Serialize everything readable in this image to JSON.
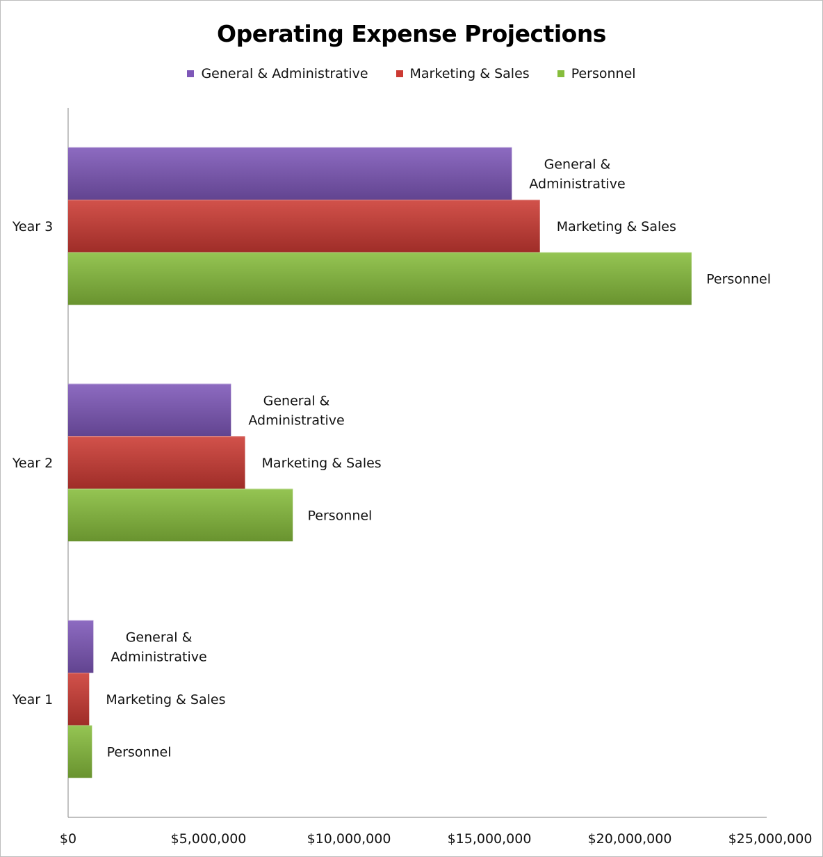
{
  "chart_data": {
    "type": "bar",
    "orientation": "horizontal",
    "title": "Operating Expense Projections",
    "categories": [
      "Year 1",
      "Year 2",
      "Year 3"
    ],
    "series": [
      {
        "name": "General & Administrative",
        "values": [
          900000,
          5800000,
          15800000
        ],
        "color": "#7e57b8",
        "label_lines": [
          "General &",
          "Administrative"
        ]
      },
      {
        "name": "Marketing & Sales",
        "values": [
          750000,
          6300000,
          16800000
        ],
        "color": "#cc3a33",
        "label_lines": [
          "Marketing & Sales"
        ]
      },
      {
        "name": "Personnel",
        "values": [
          850000,
          8000000,
          22200000
        ],
        "color": "#86bd3c",
        "label_lines": [
          "Personnel"
        ]
      }
    ],
    "xlim": [
      0,
      25000000
    ],
    "x_ticks": [
      0,
      5000000,
      10000000,
      15000000,
      20000000,
      25000000
    ],
    "x_tick_labels": [
      "$0",
      "$5,000,000",
      "$10,000,000",
      "$15,000,000",
      "$20,000,000",
      "$25,000,000"
    ],
    "legend_position": "top",
    "grid": false,
    "data_labels": "series name"
  }
}
